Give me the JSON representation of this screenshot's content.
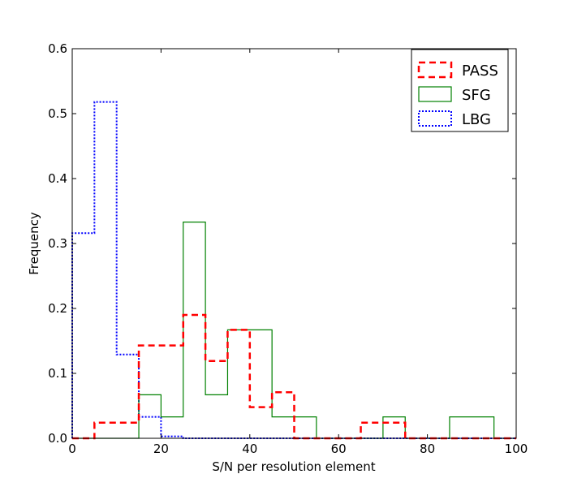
{
  "chart_data": {
    "type": "histogram",
    "title": "",
    "xlabel": "S/N per resolution element",
    "ylabel": "Frequency",
    "xlim": [
      0,
      100
    ],
    "ylim": [
      0,
      0.6
    ],
    "xticks": [
      0,
      20,
      40,
      60,
      80,
      100
    ],
    "yticks": [
      0.0,
      0.1,
      0.2,
      0.3,
      0.4,
      0.5,
      0.6
    ],
    "xtick_labels": [
      "0",
      "20",
      "40",
      "60",
      "80",
      "100"
    ],
    "ytick_labels": [
      "0.0",
      "0.1",
      "0.2",
      "0.3",
      "0.4",
      "0.5",
      "0.6"
    ],
    "bin_edges": [
      0,
      5,
      10,
      15,
      20,
      25,
      30,
      35,
      40,
      45,
      50,
      55,
      60,
      65,
      70,
      75,
      80,
      85,
      90,
      95,
      100
    ],
    "legend_position": "top-right",
    "series": [
      {
        "name": "PASS",
        "color": "#ff0000",
        "style": "dashed",
        "values": [
          0.0,
          0.024,
          0.024,
          0.143,
          0.143,
          0.19,
          0.119,
          0.167,
          0.048,
          0.071,
          0.0,
          0.0,
          0.0,
          0.024,
          0.024,
          0.0,
          0.0,
          0.0,
          0.0,
          0.0
        ]
      },
      {
        "name": "SFG",
        "color": "#008000",
        "style": "solid",
        "values": [
          0.0,
          0.0,
          0.0,
          0.067,
          0.033,
          0.333,
          0.067,
          0.167,
          0.167,
          0.033,
          0.033,
          0.0,
          0.0,
          0.0,
          0.033,
          0.0,
          0.0,
          0.033,
          0.033,
          0.0
        ]
      },
      {
        "name": "LBG",
        "color": "#0000ff",
        "style": "dotted",
        "values": [
          0.316,
          0.518,
          0.129,
          0.033,
          0.003,
          0.0,
          0.0,
          0.0,
          0.0,
          0.0,
          0.0,
          0.0,
          0.0,
          0.0,
          0.0,
          0.0,
          0.0,
          0.0,
          0.0,
          0.0
        ]
      }
    ]
  }
}
